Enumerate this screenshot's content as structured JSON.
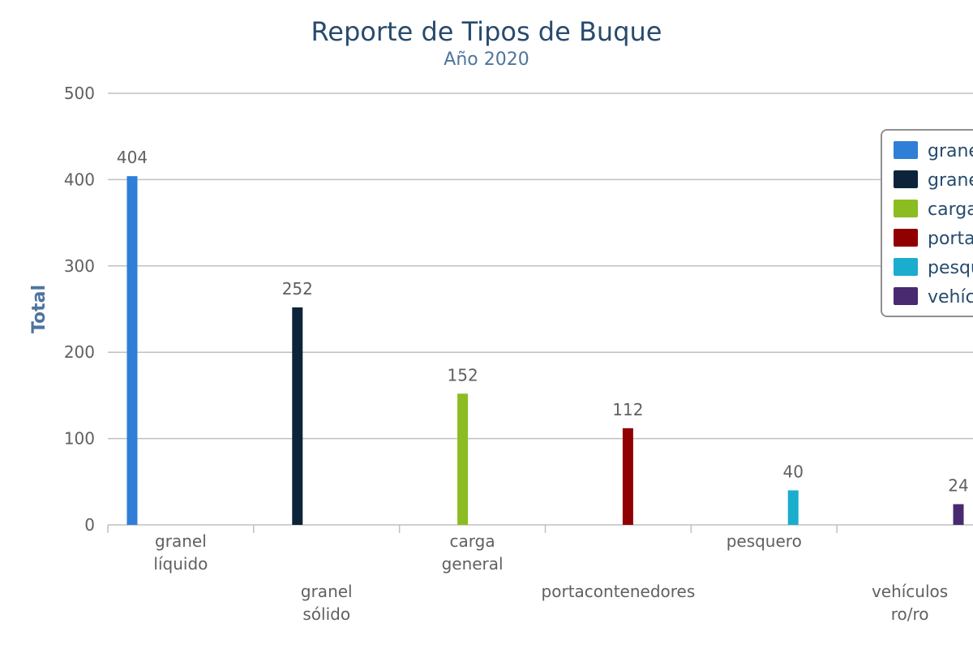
{
  "chart_data": {
    "type": "bar",
    "title": "Reporte de Tipos de Buque",
    "subtitle": "Año 2020",
    "ylabel": "Total",
    "xlabel": "",
    "ylim": [
      0,
      500
    ],
    "yticks": [
      0,
      100,
      200,
      300,
      400,
      500
    ],
    "grid": true,
    "legend_position": "right",
    "categories": [
      {
        "lines": [
          "granel",
          "líquido"
        ]
      },
      {
        "lines": [
          "granel",
          "sólido"
        ]
      },
      {
        "lines": [
          "carga",
          "general"
        ]
      },
      {
        "lines": [
          "portacontenedores"
        ]
      },
      {
        "lines": [
          "pesquero"
        ]
      },
      {
        "lines": [
          "vehículos",
          "ro/ro"
        ]
      }
    ],
    "series": [
      {
        "name": "granel líquido",
        "color": "#2f7ed8",
        "values": [
          404,
          0,
          0,
          0,
          0,
          0
        ]
      },
      {
        "name": "granel sólido",
        "color": "#0d233a",
        "values": [
          0,
          252,
          0,
          0,
          0,
          0
        ]
      },
      {
        "name": "carga general",
        "color": "#8bbc21",
        "values": [
          0,
          0,
          152,
          0,
          0,
          0
        ]
      },
      {
        "name": "portacontenedores",
        "color": "#910000",
        "values": [
          0,
          0,
          0,
          112,
          0,
          0
        ]
      },
      {
        "name": "pesquero",
        "color": "#1aadce",
        "values": [
          0,
          0,
          0,
          0,
          40,
          0
        ]
      },
      {
        "name": "vehículos ro/ro",
        "color": "#492970",
        "values": [
          0,
          0,
          0,
          0,
          0,
          24
        ]
      }
    ],
    "data_labels": [
      404,
      252,
      152,
      112,
      40,
      24
    ]
  },
  "colors": {
    "title": "#274b6d",
    "subtitle": "#4d759e",
    "axis_title": "#4d759e",
    "tick_label": "#606060",
    "grid": "#c0c0c0",
    "legend_text": "#274b6d",
    "legend_border": "#909090"
  }
}
